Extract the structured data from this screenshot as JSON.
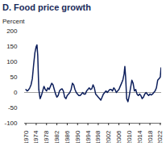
{
  "chart_data": {
    "type": "line",
    "title": "D. Food price growth",
    "subtitle": "Percent",
    "x": [
      1970,
      1970.5,
      1971,
      1971.5,
      1972,
      1972.5,
      1973,
      1973.5,
      1974,
      1974.3,
      1974.6,
      1975,
      1975.5,
      1976,
      1976.5,
      1977,
      1977.5,
      1978,
      1978.5,
      1979,
      1979.5,
      1980,
      1980.5,
      1981,
      1981.5,
      1982,
      1982.5,
      1983,
      1983.5,
      1984,
      1984.5,
      1985,
      1985.5,
      1986,
      1986.5,
      1987,
      1987.5,
      1988,
      1988.5,
      1989,
      1989.5,
      1990,
      1990.5,
      1991,
      1991.5,
      1992,
      1992.5,
      1993,
      1993.5,
      1994,
      1994.5,
      1995,
      1995.5,
      1996,
      1996.5,
      1997,
      1997.5,
      1998,
      1998.5,
      1999,
      1999.5,
      2000,
      2000.5,
      2001,
      2001.5,
      2002,
      2002.5,
      2003,
      2003.5,
      2004,
      2004.5,
      2005,
      2005.5,
      2006,
      2006.5,
      2007,
      2007.5,
      2008,
      2008.3,
      2008.6,
      2009,
      2009.5,
      2010,
      2010.5,
      2011,
      2011.5,
      2012,
      2012.5,
      2013,
      2013.5,
      2014,
      2014.5,
      2015,
      2015.5,
      2016,
      2016.5,
      2017,
      2017.5,
      2018,
      2018.5,
      2019,
      2019.5,
      2020,
      2020.5,
      2021,
      2021.5,
      2022,
      2022.3
    ],
    "series": [
      {
        "name": "Food price growth",
        "color": "#0d1f5c",
        "values": [
          10,
          5,
          8,
          15,
          25,
          45,
          90,
          130,
          150,
          155,
          120,
          10,
          -20,
          -10,
          5,
          20,
          10,
          5,
          15,
          10,
          20,
          30,
          25,
          10,
          -5,
          -15,
          -10,
          5,
          10,
          12,
          5,
          -15,
          -20,
          -10,
          -5,
          0,
          10,
          30,
          25,
          10,
          0,
          -5,
          -10,
          -10,
          -5,
          0,
          -5,
          -5,
          5,
          10,
          15,
          10,
          12,
          25,
          15,
          -5,
          -10,
          -15,
          -20,
          -25,
          -15,
          -5,
          0,
          5,
          0,
          5,
          10,
          10,
          5,
          15,
          10,
          0,
          5,
          10,
          20,
          30,
          40,
          60,
          85,
          50,
          -20,
          -30,
          -10,
          15,
          40,
          30,
          5,
          10,
          -5,
          -10,
          -5,
          -10,
          -20,
          -15,
          -5,
          0,
          -5,
          -10,
          -5,
          -8,
          -5,
          0,
          5,
          15,
          40,
          45,
          50,
          80
        ]
      }
    ],
    "xlim": [
      1969.5,
      2022.5
    ],
    "ylim": [
      -100,
      200
    ],
    "xticks": [
      1970,
      1974,
      1978,
      1982,
      1986,
      1990,
      1994,
      1998,
      2002,
      2006,
      2010,
      2014,
      2018,
      2022
    ],
    "yticks": [
      -100,
      -50,
      0,
      50,
      100,
      150,
      200
    ],
    "grid": false
  }
}
